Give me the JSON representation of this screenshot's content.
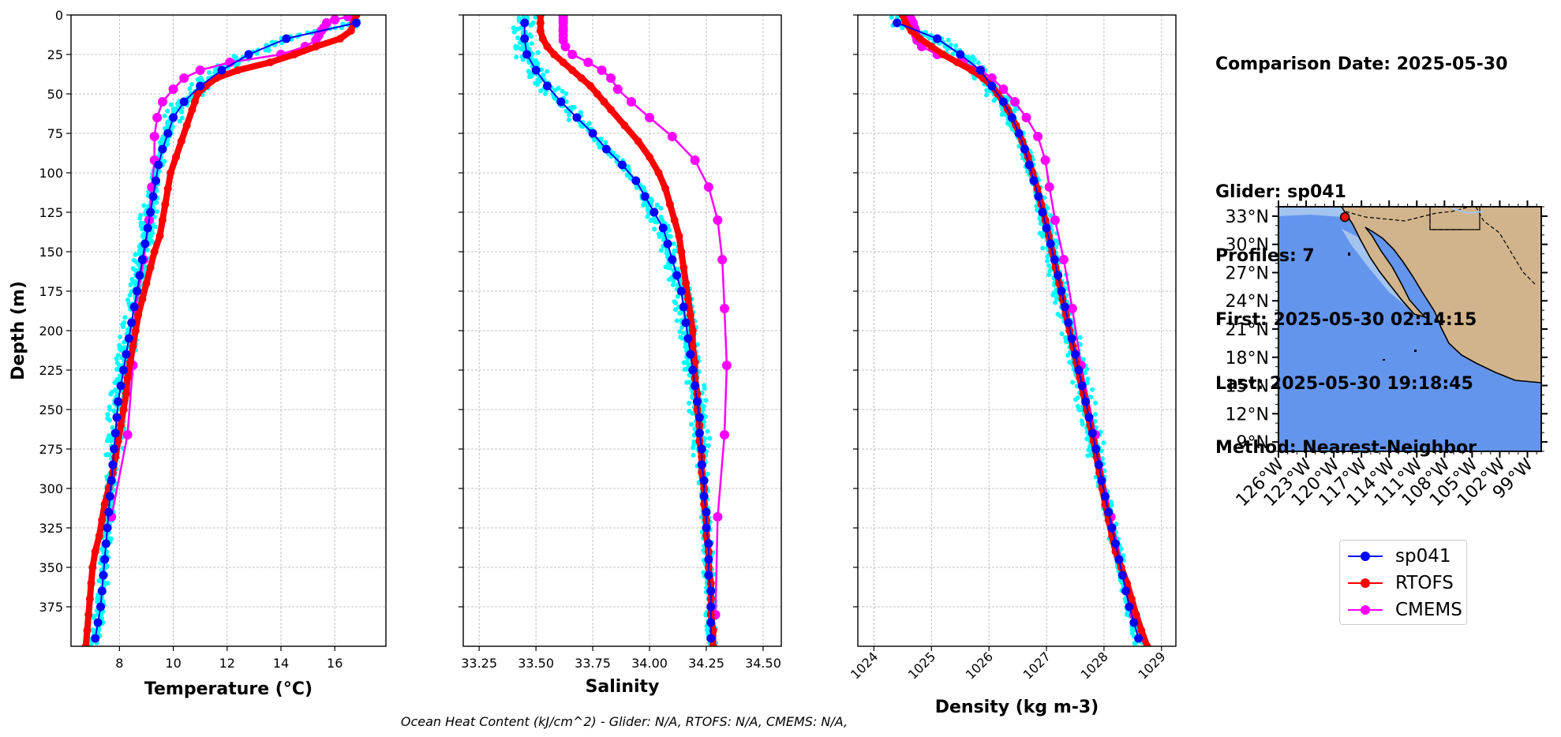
{
  "info": {
    "comparison_date": "Comparison Date: 2025-05-30",
    "glider": "Glider: sp041",
    "profiles": "Profiles: 7",
    "first": "First: 2025-05-30 02:14:15",
    "last": "Last: 2025-05-30 19:18:45",
    "method": "Method: Nearest-Neighbor"
  },
  "caption": "Ocean Heat Content (kJ/cm^2) - Glider: N/A,  RTOFS: N/A,  CMEMS: N/A,",
  "colors": {
    "glider": "#0000ff",
    "rtofs": "#ff0000",
    "cmems": "#ff00ff",
    "raw": "#00ffff",
    "ocean": "#6495ed",
    "land": "#d2b48c",
    "shelf": "#a3c4ee"
  },
  "legend": {
    "placement": "below-map",
    "items": [
      {
        "label": "sp041",
        "color": "#0000ff"
      },
      {
        "label": "RTOFS",
        "color": "#ff0000"
      },
      {
        "label": "CMEMS",
        "color": "#ff00ff"
      }
    ]
  },
  "chart_data": [
    {
      "type": "line",
      "xlabel": "Temperature (°C)",
      "ylabel": "Depth (m)",
      "xlim": [
        6.2,
        17.9
      ],
      "ylim": [
        400,
        0
      ],
      "xticks": [
        "8",
        "10",
        "12",
        "14",
        "16"
      ],
      "yticks": [
        "0",
        "25",
        "50",
        "75",
        "100",
        "125",
        "150",
        "175",
        "200",
        "225",
        "250",
        "275",
        "300",
        "325",
        "350",
        "375"
      ],
      "grid": true,
      "series": [
        {
          "name": "sp041",
          "depth": [
            5,
            15,
            25,
            35,
            45,
            55,
            65,
            75,
            85,
            95,
            105,
            115,
            125,
            135,
            145,
            155,
            165,
            175,
            185,
            195,
            205,
            215,
            225,
            235,
            245,
            255,
            265,
            275,
            285,
            295,
            305,
            315,
            325,
            335,
            345,
            355,
            365,
            375,
            385,
            395
          ],
          "values": [
            16.8,
            14.2,
            12.8,
            11.8,
            11.0,
            10.4,
            10.0,
            9.8,
            9.6,
            9.45,
            9.35,
            9.25,
            9.15,
            9.05,
            8.95,
            8.85,
            8.75,
            8.65,
            8.55,
            8.45,
            8.35,
            8.25,
            8.15,
            8.05,
            7.95,
            7.9,
            7.85,
            7.8,
            7.75,
            7.7,
            7.65,
            7.6,
            7.55,
            7.5,
            7.45,
            7.4,
            7.35,
            7.3,
            7.2,
            7.1
          ]
        },
        {
          "name": "RTOFS",
          "depth": [
            0,
            5,
            10,
            15,
            20,
            25,
            30,
            35,
            40,
            45,
            50,
            55,
            60,
            70,
            80,
            90,
            100,
            110,
            120,
            130,
            140,
            150,
            160,
            170,
            180,
            190,
            200,
            210,
            220,
            230,
            240,
            250,
            260,
            270,
            280,
            290,
            300,
            310,
            320,
            330,
            340,
            350,
            360,
            370,
            380,
            390,
            400
          ],
          "values": [
            16.8,
            16.7,
            16.6,
            16.2,
            15.3,
            14.5,
            13.6,
            12.4,
            11.6,
            11.2,
            10.9,
            10.8,
            10.7,
            10.5,
            10.3,
            10.1,
            9.9,
            9.8,
            9.7,
            9.6,
            9.5,
            9.3,
            9.15,
            9.0,
            8.85,
            8.7,
            8.6,
            8.5,
            8.4,
            8.3,
            8.25,
            8.15,
            8.05,
            7.95,
            7.85,
            7.75,
            7.6,
            7.45,
            7.35,
            7.25,
            7.1,
            7.0,
            6.95,
            6.9,
            6.85,
            6.8,
            6.75
          ]
        },
        {
          "name": "CMEMS",
          "depth": [
            1,
            3,
            5,
            8,
            10,
            13,
            16,
            20,
            25,
            30,
            35,
            40,
            47,
            55,
            65,
            77,
            92,
            109,
            130,
            155,
            186,
            222,
            266,
            318
          ],
          "values": [
            16.5,
            16.0,
            15.7,
            15.6,
            15.5,
            15.4,
            15.3,
            14.9,
            14.0,
            12.1,
            11.0,
            10.4,
            10.0,
            9.6,
            9.4,
            9.3,
            9.3,
            9.2,
            9.1,
            8.9,
            8.6,
            8.5,
            8.3,
            7.7
          ]
        }
      ]
    },
    {
      "type": "line",
      "xlabel": "Salinity",
      "ylabel": "",
      "xlim": [
        33.18,
        34.58
      ],
      "ylim": [
        400,
        0
      ],
      "xticks": [
        "33.25",
        "33.50",
        "33.75",
        "34.00",
        "34.25",
        "34.50"
      ],
      "grid": true,
      "series": [
        {
          "name": "sp041",
          "depth": [
            5,
            15,
            25,
            35,
            45,
            55,
            65,
            75,
            85,
            95,
            105,
            115,
            125,
            135,
            145,
            155,
            165,
            175,
            185,
            195,
            205,
            215,
            225,
            235,
            245,
            255,
            265,
            275,
            285,
            295,
            305,
            315,
            325,
            335,
            345,
            355,
            365,
            375,
            385,
            395
          ],
          "values": [
            33.45,
            33.45,
            33.46,
            33.5,
            33.55,
            33.61,
            33.68,
            33.75,
            33.81,
            33.88,
            33.94,
            33.98,
            34.02,
            34.06,
            34.08,
            34.1,
            34.12,
            34.14,
            34.15,
            34.16,
            34.17,
            34.18,
            34.19,
            34.2,
            34.21,
            34.22,
            34.22,
            34.23,
            34.23,
            34.24,
            34.24,
            34.25,
            34.25,
            34.26,
            34.26,
            34.26,
            34.27,
            34.27,
            34.27,
            34.27
          ]
        },
        {
          "name": "RTOFS",
          "depth": [
            0,
            5,
            10,
            15,
            20,
            25,
            30,
            35,
            40,
            45,
            50,
            55,
            60,
            70,
            80,
            90,
            100,
            110,
            120,
            130,
            140,
            150,
            160,
            170,
            180,
            190,
            200,
            210,
            220,
            230,
            240,
            250,
            260,
            270,
            280,
            290,
            300,
            310,
            320,
            330,
            340,
            350,
            360,
            370,
            380,
            390,
            400
          ],
          "values": [
            33.52,
            33.52,
            33.52,
            33.53,
            33.55,
            33.58,
            33.62,
            33.66,
            33.7,
            33.74,
            33.77,
            33.8,
            33.83,
            33.89,
            33.95,
            34.0,
            34.04,
            34.07,
            34.09,
            34.11,
            34.13,
            34.14,
            34.15,
            34.16,
            34.17,
            34.18,
            34.19,
            34.19,
            34.2,
            34.2,
            34.21,
            34.21,
            34.22,
            34.22,
            34.23,
            34.23,
            34.24,
            34.24,
            34.25,
            34.25,
            34.26,
            34.26,
            34.27,
            34.27,
            34.27,
            34.28,
            34.28
          ]
        },
        {
          "name": "CMEMS",
          "depth": [
            1,
            3,
            5,
            8,
            10,
            13,
            16,
            20,
            25,
            30,
            35,
            40,
            47,
            55,
            65,
            77,
            92,
            109,
            130,
            155,
            186,
            222,
            266,
            318,
            380
          ],
          "values": [
            33.62,
            33.62,
            33.62,
            33.62,
            33.62,
            33.62,
            33.62,
            33.63,
            33.66,
            33.73,
            33.79,
            33.83,
            33.86,
            33.92,
            34.0,
            34.1,
            34.2,
            34.26,
            34.3,
            34.32,
            34.33,
            34.34,
            34.33,
            34.3,
            34.29
          ]
        }
      ]
    },
    {
      "type": "line",
      "xlabel": "Density (kg m-3)",
      "ylabel": "",
      "xlim": [
        1023.72,
        1029.25
      ],
      "ylim": [
        400,
        0
      ],
      "xticks": [
        "1024",
        "1025",
        "1026",
        "1027",
        "1028",
        "1029"
      ],
      "grid": true,
      "series": [
        {
          "name": "sp041",
          "depth": [
            5,
            15,
            25,
            35,
            45,
            55,
            65,
            75,
            85,
            95,
            105,
            115,
            125,
            135,
            145,
            155,
            165,
            175,
            185,
            195,
            205,
            215,
            225,
            235,
            245,
            255,
            265,
            275,
            285,
            295,
            305,
            315,
            325,
            335,
            345,
            355,
            365,
            375,
            385,
            395
          ],
          "values": [
            1024.4,
            1025.1,
            1025.5,
            1025.85,
            1026.05,
            1026.25,
            1026.4,
            1026.52,
            1026.62,
            1026.7,
            1026.78,
            1026.86,
            1026.93,
            1027.0,
            1027.07,
            1027.14,
            1027.2,
            1027.26,
            1027.32,
            1027.38,
            1027.44,
            1027.5,
            1027.56,
            1027.62,
            1027.68,
            1027.74,
            1027.8,
            1027.86,
            1027.91,
            1027.96,
            1028.02,
            1028.08,
            1028.14,
            1028.2,
            1028.26,
            1028.32,
            1028.38,
            1028.44,
            1028.52,
            1028.6
          ]
        },
        {
          "name": "RTOFS",
          "depth": [
            0,
            5,
            10,
            15,
            20,
            25,
            30,
            35,
            40,
            45,
            50,
            55,
            60,
            70,
            80,
            90,
            100,
            110,
            120,
            130,
            140,
            150,
            160,
            170,
            180,
            190,
            200,
            210,
            220,
            230,
            240,
            250,
            260,
            270,
            280,
            290,
            300,
            310,
            320,
            330,
            340,
            350,
            360,
            370,
            380,
            390,
            400
          ],
          "values": [
            1024.5,
            1024.55,
            1024.65,
            1024.8,
            1025.0,
            1025.2,
            1025.45,
            1025.7,
            1025.9,
            1026.05,
            1026.15,
            1026.25,
            1026.33,
            1026.47,
            1026.58,
            1026.68,
            1026.76,
            1026.84,
            1026.91,
            1026.98,
            1027.04,
            1027.1,
            1027.16,
            1027.22,
            1027.28,
            1027.34,
            1027.4,
            1027.46,
            1027.52,
            1027.58,
            1027.64,
            1027.7,
            1027.76,
            1027.82,
            1027.87,
            1027.92,
            1027.97,
            1028.02,
            1028.08,
            1028.14,
            1028.2,
            1028.3,
            1028.4,
            1028.48,
            1028.56,
            1028.65,
            1028.75
          ]
        },
        {
          "name": "CMEMS",
          "depth": [
            1,
            3,
            5,
            8,
            10,
            13,
            16,
            20,
            25,
            30,
            35,
            40,
            47,
            55,
            65,
            77,
            92,
            109,
            130,
            155,
            186,
            222,
            266,
            318,
            380
          ],
          "values": [
            1024.62,
            1024.65,
            1024.68,
            1024.7,
            1024.72,
            1024.73,
            1024.75,
            1024.83,
            1025.1,
            1025.55,
            1025.85,
            1026.05,
            1026.25,
            1026.45,
            1026.65,
            1026.85,
            1026.98,
            1027.05,
            1027.15,
            1027.3,
            1027.45,
            1027.6,
            1027.85,
            1028.12,
            1028.52
          ]
        }
      ]
    },
    {
      "type": "map",
      "lon_ticks": [
        "126°W",
        "123°W",
        "120°W",
        "117°W",
        "114°W",
        "111°W",
        "108°W",
        "105°W",
        "102°W",
        "99°W"
      ],
      "lat_ticks": [
        "33°N",
        "30°N",
        "27°N",
        "24°N",
        "21°N",
        "18°N",
        "15°N",
        "12°N",
        "9°N"
      ],
      "lon_range": [
        -126,
        -97.5
      ],
      "lat_range": [
        8,
        34
      ],
      "glider_position": {
        "lon": -118.8,
        "lat": 32.9
      }
    }
  ]
}
